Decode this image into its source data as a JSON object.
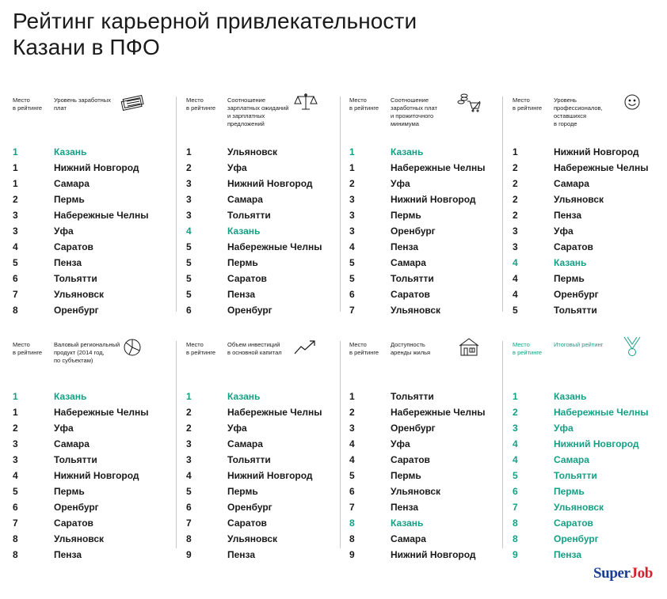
{
  "title": "Рейтинг карьерной привлекательности\nКазани в ПФО",
  "highlight_color": "#14a085",
  "brand": {
    "part1": "Super",
    "part2": "Job"
  },
  "panels": [
    {
      "place_label": "Место\nв рейтинге",
      "criterion": "Уровень заработных\nплат",
      "icon": "money-stack-icon",
      "rows": [
        {
          "rank": "1",
          "city": "Казань",
          "hl": true
        },
        {
          "rank": "1",
          "city": "Нижний Новгород"
        },
        {
          "rank": "1",
          "city": "Самара"
        },
        {
          "rank": "2",
          "city": "Пермь"
        },
        {
          "rank": "3",
          "city": "Набережные Челны"
        },
        {
          "rank": "3",
          "city": "Уфа"
        },
        {
          "rank": "4",
          "city": "Саратов"
        },
        {
          "rank": "5",
          "city": "Пенза"
        },
        {
          "rank": "6",
          "city": "Тольятти"
        },
        {
          "rank": "7",
          "city": "Ульяновск"
        },
        {
          "rank": "8",
          "city": "Оренбург"
        }
      ]
    },
    {
      "place_label": "Место\nв рейтинге",
      "criterion": "Соотношение\nзарплатных ожиданий\nи зарплатных\nпредложений",
      "icon": "scales-icon",
      "rows": [
        {
          "rank": "1",
          "city": "Ульяновск"
        },
        {
          "rank": "2",
          "city": "Уфа"
        },
        {
          "rank": "3",
          "city": "Нижний Новгород"
        },
        {
          "rank": "3",
          "city": "Самара"
        },
        {
          "rank": "3",
          "city": "Тольятти"
        },
        {
          "rank": "4",
          "city": "Казань",
          "hl": true
        },
        {
          "rank": "5",
          "city": "Набережные Челны"
        },
        {
          "rank": "5",
          "city": "Пермь"
        },
        {
          "rank": "5",
          "city": "Саратов"
        },
        {
          "rank": "5",
          "city": "Пенза"
        },
        {
          "rank": "6",
          "city": "Оренбург"
        }
      ]
    },
    {
      "place_label": "Место\nв рейтинге",
      "criterion": "Соотношение\nзаработных плат\nи прожиточного\nминимума",
      "icon": "coins-cart-icon",
      "rows": [
        {
          "rank": "1",
          "city": "Казань",
          "hl": true
        },
        {
          "rank": "1",
          "city": "Набережные Челны"
        },
        {
          "rank": "2",
          "city": "Уфа"
        },
        {
          "rank": "3",
          "city": "Нижний Новгород"
        },
        {
          "rank": "3",
          "city": "Пермь"
        },
        {
          "rank": "3",
          "city": "Оренбург"
        },
        {
          "rank": "4",
          "city": "Пенза"
        },
        {
          "rank": "5",
          "city": "Самара"
        },
        {
          "rank": "5",
          "city": "Тольятти"
        },
        {
          "rank": "6",
          "city": "Саратов"
        },
        {
          "rank": "7",
          "city": "Ульяновск"
        }
      ]
    },
    {
      "place_label": "Место\nв рейтинге",
      "criterion": "Уровень\nпрофессионалов,\nоставшихся\nв городе",
      "icon": "smiley-icon",
      "rows": [
        {
          "rank": "1",
          "city": "Нижний Новгород"
        },
        {
          "rank": "2",
          "city": "Набережные Челны"
        },
        {
          "rank": "2",
          "city": "Самара"
        },
        {
          "rank": "2",
          "city": "Ульяновск"
        },
        {
          "rank": "2",
          "city": "Пенза"
        },
        {
          "rank": "3",
          "city": "Уфа"
        },
        {
          "rank": "3",
          "city": "Саратов"
        },
        {
          "rank": "4",
          "city": "Казань",
          "hl": true
        },
        {
          "rank": "4",
          "city": "Пермь"
        },
        {
          "rank": "4",
          "city": "Оренбург"
        },
        {
          "rank": "5",
          "city": "Тольятти"
        }
      ]
    },
    {
      "place_label": "Место\nв рейтинге",
      "criterion": "Валовый региональный\nпродукт (2014 год,\nпо субъектам)",
      "icon": "pie-chart-icon",
      "rows": [
        {
          "rank": "1",
          "city": "Казань",
          "hl": true
        },
        {
          "rank": "1",
          "city": "Набережные Челны"
        },
        {
          "rank": "2",
          "city": "Уфа"
        },
        {
          "rank": "3",
          "city": "Самара"
        },
        {
          "rank": "3",
          "city": "Тольятти"
        },
        {
          "rank": "4",
          "city": "Нижний Новгород"
        },
        {
          "rank": "5",
          "city": "Пермь"
        },
        {
          "rank": "6",
          "city": "Оренбург"
        },
        {
          "rank": "7",
          "city": "Саратов"
        },
        {
          "rank": "8",
          "city": "Ульяновск"
        },
        {
          "rank": "8",
          "city": "Пенза"
        }
      ]
    },
    {
      "place_label": "Место\nв рейтинге",
      "criterion": "Объем инвестиций\nв основной капитал",
      "icon": "growth-arrow-icon",
      "rows": [
        {
          "rank": "1",
          "city": "Казань",
          "hl": true
        },
        {
          "rank": "2",
          "city": "Набережные Челны"
        },
        {
          "rank": "2",
          "city": "Уфа"
        },
        {
          "rank": "3",
          "city": "Самара"
        },
        {
          "rank": "3",
          "city": "Тольятти"
        },
        {
          "rank": "4",
          "city": "Нижний Новгород"
        },
        {
          "rank": "5",
          "city": "Пермь"
        },
        {
          "rank": "6",
          "city": "Оренбург"
        },
        {
          "rank": "7",
          "city": "Саратов"
        },
        {
          "rank": "8",
          "city": "Ульяновск"
        },
        {
          "rank": "9",
          "city": "Пенза"
        }
      ]
    },
    {
      "place_label": "Место\nв рейтинге",
      "criterion": "Доступность\nаренды жилья",
      "icon": "house-icon",
      "rows": [
        {
          "rank": "1",
          "city": "Тольятти"
        },
        {
          "rank": "2",
          "city": "Набережные Челны"
        },
        {
          "rank": "3",
          "city": "Оренбург"
        },
        {
          "rank": "4",
          "city": "Уфа"
        },
        {
          "rank": "4",
          "city": "Саратов"
        },
        {
          "rank": "5",
          "city": "Пермь"
        },
        {
          "rank": "6",
          "city": "Ульяновск"
        },
        {
          "rank": "7",
          "city": "Пенза"
        },
        {
          "rank": "8",
          "city": "Казань",
          "hl": true
        },
        {
          "rank": "8",
          "city": "Самара"
        },
        {
          "rank": "9",
          "city": "Нижний Новгород"
        }
      ]
    },
    {
      "place_label": "Место\nв рейтинге",
      "criterion": "Итоговый рейтинг",
      "icon": "medal-icon",
      "all_hl": true,
      "rows": [
        {
          "rank": "1",
          "city": "Казань"
        },
        {
          "rank": "2",
          "city": "Набережные Челны"
        },
        {
          "rank": "3",
          "city": "Уфа"
        },
        {
          "rank": "4",
          "city": "Нижний Новгород"
        },
        {
          "rank": "4",
          "city": "Самара"
        },
        {
          "rank": "5",
          "city": "Тольятти"
        },
        {
          "rank": "6",
          "city": "Пермь"
        },
        {
          "rank": "7",
          "city": "Ульяновск"
        },
        {
          "rank": "8",
          "city": "Саратов"
        },
        {
          "rank": "8",
          "city": "Оренбург"
        },
        {
          "rank": "9",
          "city": "Пенза"
        }
      ]
    }
  ]
}
